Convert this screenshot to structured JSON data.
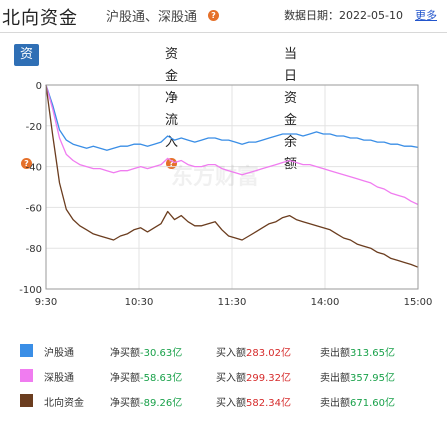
{
  "header": {
    "title": "北向资金",
    "subtitle": "沪股通、深股通",
    "help_icon": "?",
    "date_label": "数据日期：2022-05-10",
    "more_label": "更多"
  },
  "tabs": [
    {
      "label": "资金净买额",
      "active": true,
      "help": "?"
    },
    {
      "label": "资金净流入",
      "active": false,
      "help": "?"
    },
    {
      "label": "当日资金余额",
      "active": false
    }
  ],
  "watermark": "东方财富",
  "chart_data": {
    "type": "line",
    "x_ticks": [
      "9:30",
      "10:30",
      "11:30",
      "14:00",
      "15:00"
    ],
    "y_ticks": [
      "0",
      "-20",
      "-40",
      "-60",
      "-80",
      "-100"
    ],
    "ylim": [
      -100,
      0
    ],
    "grid": true,
    "series": [
      {
        "name": "沪股通",
        "color": "#3a8ee6",
        "values": [
          0,
          -10,
          -22,
          -27,
          -29,
          -30,
          -31,
          -30,
          -31,
          -32,
          -31,
          -30,
          -30,
          -29,
          -29,
          -30,
          -29,
          -28,
          -25,
          -27,
          -26,
          -27,
          -28,
          -27,
          -26,
          -26,
          -27,
          -27,
          -28,
          -29,
          -28,
          -28,
          -27,
          -26,
          -25,
          -24,
          -24,
          -24,
          -25,
          -24,
          -23,
          -24,
          -24,
          -25,
          -25,
          -26,
          -26,
          -27,
          -27,
          -28,
          -28,
          -29,
          -29,
          -30,
          -30,
          -30.6
        ]
      },
      {
        "name": "深股通",
        "color": "#f07cf0",
        "values": [
          0,
          -12,
          -26,
          -34,
          -37,
          -39,
          -40,
          -41,
          -41,
          -42,
          -43,
          -42,
          -42,
          -41,
          -40,
          -41,
          -40,
          -39,
          -36,
          -38,
          -37,
          -39,
          -40,
          -40,
          -39,
          -39,
          -41,
          -42,
          -43,
          -44,
          -43,
          -42,
          -41,
          -40,
          -39,
          -38,
          -37,
          -38,
          -39,
          -39,
          -40,
          -41,
          -42,
          -43,
          -44,
          -45,
          -46,
          -47,
          -48,
          -50,
          -51,
          -53,
          -54,
          -55,
          -57,
          -58.6
        ]
      },
      {
        "name": "北向资金",
        "color": "#6b3d1f",
        "values": [
          0,
          -25,
          -48,
          -61,
          -66,
          -69,
          -71,
          -73,
          -74,
          -75,
          -76,
          -74,
          -73,
          -71,
          -70,
          -72,
          -70,
          -68,
          -62,
          -66,
          -64,
          -67,
          -69,
          -69,
          -68,
          -67,
          -71,
          -74,
          -75,
          -76,
          -74,
          -72,
          -70,
          -68,
          -67,
          -65,
          -64,
          -66,
          -67,
          -68,
          -69,
          -70,
          -71,
          -73,
          -75,
          -76,
          -78,
          -79,
          -80,
          -82,
          -83,
          -85,
          -86,
          -87,
          -88,
          -89.3
        ]
      }
    ]
  },
  "legend": [
    {
      "name": "沪股通",
      "color": "#3a8ee6",
      "net": "净买额",
      "net_value": "-30.63亿",
      "buy": "买入额",
      "buy_value": "283.02亿",
      "sell": "卖出额",
      "sell_value": "313.65亿"
    },
    {
      "name": "深股通",
      "color": "#f07cf0",
      "net": "净买额",
      "net_value": "-58.63亿",
      "buy": "买入额",
      "buy_value": "299.32亿",
      "sell": "卖出额",
      "sell_value": "357.95亿"
    },
    {
      "name": "北向资金",
      "color": "#6b3d1f",
      "net": "净买额",
      "net_value": "-89.26亿",
      "buy": "买入额",
      "buy_value": "582.34亿",
      "sell": "卖出额",
      "sell_value": "671.60亿"
    }
  ]
}
